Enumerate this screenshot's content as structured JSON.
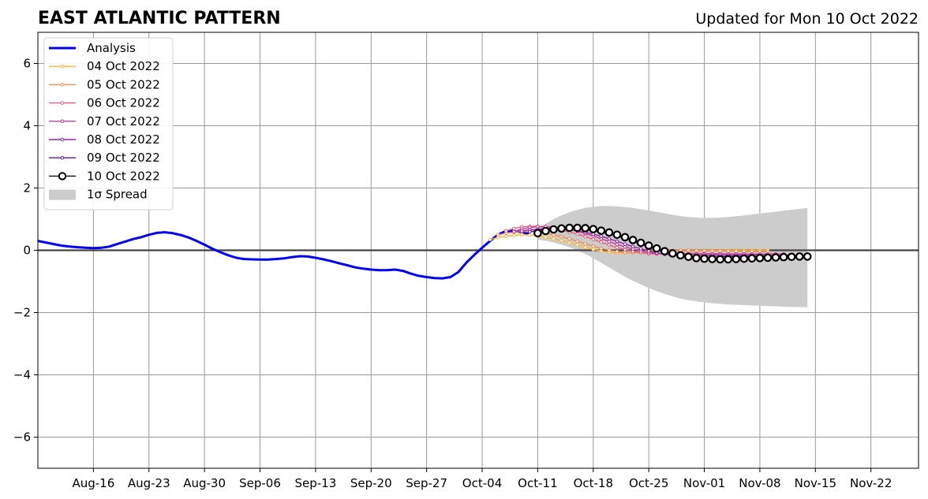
{
  "header": {
    "title": "EAST ATLANTIC PATTERN",
    "updated": "Updated for Mon 10 Oct 2022"
  },
  "chart_data": {
    "type": "line",
    "title": "EAST ATLANTIC PATTERN",
    "subtitle": "Updated for Mon 10 Oct 2022",
    "xlabel": "",
    "ylabel": "",
    "x_axis": {
      "type": "date",
      "range": [
        "2022-08-09",
        "2022-11-28"
      ],
      "tick_dates": [
        "2022-08-16",
        "2022-08-23",
        "2022-08-30",
        "2022-09-06",
        "2022-09-13",
        "2022-09-20",
        "2022-09-27",
        "2022-10-04",
        "2022-10-11",
        "2022-10-18",
        "2022-10-25",
        "2022-11-01",
        "2022-11-08",
        "2022-11-15",
        "2022-11-22"
      ],
      "tick_labels": [
        "Aug-16",
        "Aug-23",
        "Aug-30",
        "Sep-06",
        "Sep-13",
        "Sep-20",
        "Sep-27",
        "Oct-04",
        "Oct-11",
        "Oct-18",
        "Oct-25",
        "Nov-01",
        "Nov-08",
        "Nov-15",
        "Nov-22"
      ]
    },
    "y_axis": {
      "range": [
        -7,
        7
      ],
      "ticks": [
        -6,
        -4,
        -2,
        0,
        2,
        4,
        6
      ],
      "tick_labels": [
        "−6",
        "−4",
        "−2",
        "0",
        "2",
        "4",
        "6"
      ]
    },
    "grid": true,
    "zero_line": true,
    "legend_position": "top-left",
    "legend": [
      {
        "label": "Analysis",
        "color": "#0000ee",
        "style": "line"
      },
      {
        "label": "04 Oct 2022",
        "color": "#fcb73a",
        "style": "marker-line"
      },
      {
        "label": "05 Oct 2022",
        "color": "#f58a4e",
        "style": "marker-line"
      },
      {
        "label": "06 Oct 2022",
        "color": "#e1637a",
        "style": "marker-line"
      },
      {
        "label": "07 Oct 2022",
        "color": "#c23f92",
        "style": "marker-line"
      },
      {
        "label": "08 Oct 2022",
        "color": "#9a22a5",
        "style": "marker-line"
      },
      {
        "label": "09 Oct 2022",
        "color": "#5c12a0",
        "style": "marker-line"
      },
      {
        "label": "10 Oct 2022",
        "color": "#000000",
        "style": "open-circle"
      },
      {
        "label": "1σ Spread",
        "color": "#cccccc",
        "style": "patch"
      }
    ],
    "series": [
      {
        "name": "Analysis",
        "color": "#0000ee",
        "points": [
          [
            "2022-08-09",
            0.3
          ],
          [
            "2022-08-10",
            0.25
          ],
          [
            "2022-08-11",
            0.2
          ],
          [
            "2022-08-12",
            0.15
          ],
          [
            "2022-08-13",
            0.12
          ],
          [
            "2022-08-14",
            0.1
          ],
          [
            "2022-08-15",
            0.08
          ],
          [
            "2022-08-16",
            0.07
          ],
          [
            "2022-08-17",
            0.08
          ],
          [
            "2022-08-18",
            0.12
          ],
          [
            "2022-08-19",
            0.2
          ],
          [
            "2022-08-20",
            0.28
          ],
          [
            "2022-08-21",
            0.36
          ],
          [
            "2022-08-22",
            0.42
          ],
          [
            "2022-08-23",
            0.5
          ],
          [
            "2022-08-24",
            0.56
          ],
          [
            "2022-08-25",
            0.58
          ],
          [
            "2022-08-26",
            0.55
          ],
          [
            "2022-08-27",
            0.49
          ],
          [
            "2022-08-28",
            0.41
          ],
          [
            "2022-08-29",
            0.3
          ],
          [
            "2022-08-30",
            0.18
          ],
          [
            "2022-08-31",
            0.05
          ],
          [
            "2022-09-01",
            -0.06
          ],
          [
            "2022-09-02",
            -0.16
          ],
          [
            "2022-09-03",
            -0.24
          ],
          [
            "2022-09-04",
            -0.28
          ],
          [
            "2022-09-05",
            -0.29
          ],
          [
            "2022-09-06",
            -0.3
          ],
          [
            "2022-09-07",
            -0.3
          ],
          [
            "2022-09-08",
            -0.28
          ],
          [
            "2022-09-09",
            -0.26
          ],
          [
            "2022-09-10",
            -0.22
          ],
          [
            "2022-09-11",
            -0.19
          ],
          [
            "2022-09-12",
            -0.2
          ],
          [
            "2022-09-13",
            -0.24
          ],
          [
            "2022-09-14",
            -0.29
          ],
          [
            "2022-09-15",
            -0.35
          ],
          [
            "2022-09-16",
            -0.42
          ],
          [
            "2022-09-17",
            -0.48
          ],
          [
            "2022-09-18",
            -0.55
          ],
          [
            "2022-09-19",
            -0.59
          ],
          [
            "2022-09-20",
            -0.62
          ],
          [
            "2022-09-21",
            -0.64
          ],
          [
            "2022-09-22",
            -0.64
          ],
          [
            "2022-09-23",
            -0.62
          ],
          [
            "2022-09-24",
            -0.66
          ],
          [
            "2022-09-25",
            -0.75
          ],
          [
            "2022-09-26",
            -0.82
          ],
          [
            "2022-09-27",
            -0.86
          ],
          [
            "2022-09-28",
            -0.89
          ],
          [
            "2022-09-29",
            -0.9
          ],
          [
            "2022-09-30",
            -0.86
          ],
          [
            "2022-10-01",
            -0.7
          ],
          [
            "2022-10-02",
            -0.4
          ],
          [
            "2022-10-03",
            -0.15
          ],
          [
            "2022-10-04",
            0.08
          ],
          [
            "2022-10-05",
            0.3
          ],
          [
            "2022-10-06",
            0.5
          ],
          [
            "2022-10-07",
            0.62
          ],
          [
            "2022-10-08",
            0.62
          ],
          [
            "2022-10-09",
            0.58
          ],
          [
            "2022-10-10",
            0.52
          ]
        ]
      },
      {
        "name": "04 Oct 2022",
        "color": "#fcb73a",
        "start": "2022-10-05",
        "values": [
          0.35,
          0.41,
          0.45,
          0.48,
          0.5,
          0.49,
          0.46,
          0.42,
          0.37,
          0.31,
          0.24,
          0.17,
          0.1,
          0.03,
          -0.02,
          -0.06,
          -0.08,
          -0.08,
          -0.06,
          -0.04,
          -0.02,
          -0.01,
          0.0,
          0.0,
          0.0,
          0.0,
          0.0,
          0.0,
          0.0,
          0.0,
          0.0,
          0.0,
          0.0,
          0.0,
          0.0,
          0.0
        ]
      },
      {
        "name": "05 Oct 2022",
        "color": "#f58a4e",
        "start": "2022-10-06",
        "values": [
          0.5,
          0.55,
          0.58,
          0.6,
          0.6,
          0.58,
          0.55,
          0.5,
          0.44,
          0.37,
          0.29,
          0.21,
          0.13,
          0.06,
          0.0,
          -0.04,
          -0.07,
          -0.08,
          -0.07,
          -0.05,
          -0.03,
          -0.02,
          -0.01,
          0.0,
          0.0,
          -0.01,
          -0.01,
          -0.02,
          -0.02,
          -0.03,
          -0.03,
          -0.04,
          -0.04,
          -0.04,
          -0.05
        ]
      },
      {
        "name": "06 Oct 2022",
        "color": "#e1637a",
        "start": "2022-10-07",
        "values": [
          0.62,
          0.7,
          0.75,
          0.77,
          0.77,
          0.74,
          0.7,
          0.65,
          0.59,
          0.52,
          0.44,
          0.35,
          0.26,
          0.17,
          0.09,
          0.02,
          -0.04,
          -0.08,
          -0.11,
          -0.12,
          -0.12,
          -0.11,
          -0.1,
          -0.1,
          -0.1,
          -0.1,
          -0.11,
          -0.11,
          -0.12,
          -0.12,
          -0.12,
          -0.12,
          -0.12,
          -0.12,
          -0.12
        ]
      },
      {
        "name": "07 Oct 2022",
        "color": "#c23f92",
        "start": "2022-10-08",
        "values": [
          0.6,
          0.68,
          0.73,
          0.76,
          0.76,
          0.74,
          0.71,
          0.67,
          0.61,
          0.54,
          0.46,
          0.37,
          0.28,
          0.19,
          0.11,
          0.04,
          -0.02,
          -0.07,
          -0.1,
          -0.12,
          -0.13,
          -0.13,
          -0.12,
          -0.12,
          -0.12,
          -0.12,
          -0.12,
          -0.12,
          -0.12,
          -0.12,
          -0.12,
          -0.12,
          -0.12,
          -0.12,
          -0.12
        ]
      },
      {
        "name": "08 Oct 2022",
        "color": "#9a22a5",
        "start": "2022-10-09",
        "values": [
          0.62,
          0.66,
          0.68,
          0.69,
          0.69,
          0.68,
          0.66,
          0.63,
          0.58,
          0.52,
          0.45,
          0.37,
          0.29,
          0.2,
          0.12,
          0.05,
          -0.02,
          -0.08,
          -0.13,
          -0.16,
          -0.17,
          -0.17,
          -0.16,
          -0.16,
          -0.16,
          -0.16,
          -0.16,
          -0.16,
          -0.16,
          -0.16,
          -0.16,
          -0.16,
          -0.16,
          -0.16,
          -0.16
        ]
      },
      {
        "name": "09 Oct 2022",
        "color": "#5c12a0",
        "start": "2022-10-10",
        "values": [
          0.6,
          0.64,
          0.67,
          0.69,
          0.7,
          0.7,
          0.69,
          0.67,
          0.63,
          0.58,
          0.52,
          0.45,
          0.37,
          0.28,
          0.19,
          0.1,
          0.02,
          -0.06,
          -0.12,
          -0.17,
          -0.21,
          -0.23,
          -0.23,
          -0.22,
          -0.21,
          -0.2,
          -0.2,
          -0.2,
          -0.2,
          -0.2,
          -0.2,
          -0.2,
          -0.2,
          -0.2,
          -0.2
        ]
      },
      {
        "name": "10 Oct 2022",
        "color": "#000000",
        "start": "2022-10-11",
        "values": [
          0.55,
          0.62,
          0.67,
          0.7,
          0.72,
          0.72,
          0.71,
          0.68,
          0.63,
          0.57,
          0.5,
          0.42,
          0.33,
          0.24,
          0.15,
          0.06,
          -0.03,
          -0.1,
          -0.16,
          -0.21,
          -0.25,
          -0.27,
          -0.28,
          -0.29,
          -0.29,
          -0.28,
          -0.27,
          -0.26,
          -0.25,
          -0.24,
          -0.23,
          -0.22,
          -0.21,
          -0.2,
          -0.2
        ]
      }
    ],
    "spread": {
      "name": "1σ Spread",
      "color": "#cccccc",
      "start": "2022-10-11",
      "upper": [
        0.7,
        0.85,
        1.0,
        1.12,
        1.22,
        1.3,
        1.36,
        1.4,
        1.42,
        1.42,
        1.41,
        1.39,
        1.36,
        1.32,
        1.28,
        1.23,
        1.19,
        1.14,
        1.1,
        1.07,
        1.05,
        1.04,
        1.04,
        1.05,
        1.07,
        1.09,
        1.12,
        1.15,
        1.18,
        1.21,
        1.24,
        1.27,
        1.3,
        1.33,
        1.36
      ],
      "lower": [
        0.35,
        0.3,
        0.25,
        0.18,
        0.1,
        0.0,
        -0.12,
        -0.25,
        -0.4,
        -0.55,
        -0.7,
        -0.85,
        -0.98,
        -1.1,
        -1.21,
        -1.31,
        -1.4,
        -1.48,
        -1.55,
        -1.6,
        -1.64,
        -1.67,
        -1.7,
        -1.72,
        -1.74,
        -1.75,
        -1.76,
        -1.77,
        -1.78,
        -1.79,
        -1.8,
        -1.81,
        -1.82,
        -1.82,
        -1.83
      ]
    }
  }
}
